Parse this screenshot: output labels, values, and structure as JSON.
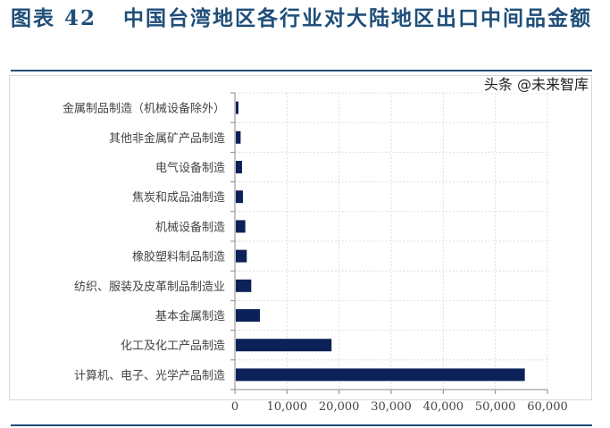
{
  "figure": {
    "label": "图表 42",
    "title": "中国台湾地区各行业对大陆地区出口中间品金额"
  },
  "watermark": "头条 @未来智库",
  "colors": {
    "bar": "#0c2157",
    "title": "#1f4e79"
  },
  "chart_data": {
    "type": "bar",
    "orientation": "horizontal",
    "categories": [
      "金属制品制造（机械设备除外）",
      "其他非金属矿产品制造",
      "电气设备制造",
      "焦炭和成品油制造",
      "机械设备制造",
      "橡胶塑料制品制造",
      "纺织、服装及皮革制品制造业",
      "基本金属制造",
      "化工及化工产品制造",
      "计算机、电子、光学产品制造"
    ],
    "values": [
      680,
      1100,
      1370,
      1540,
      2000,
      2280,
      3140,
      4800,
      18550,
      55650
    ],
    "xlim": [
      0,
      60000
    ],
    "xticks": [
      "0",
      "10,000",
      "20,000",
      "30,000",
      "40,000",
      "50,000",
      "60,000"
    ],
    "grid": true,
    "title": "",
    "xlabel": "",
    "ylabel": ""
  }
}
